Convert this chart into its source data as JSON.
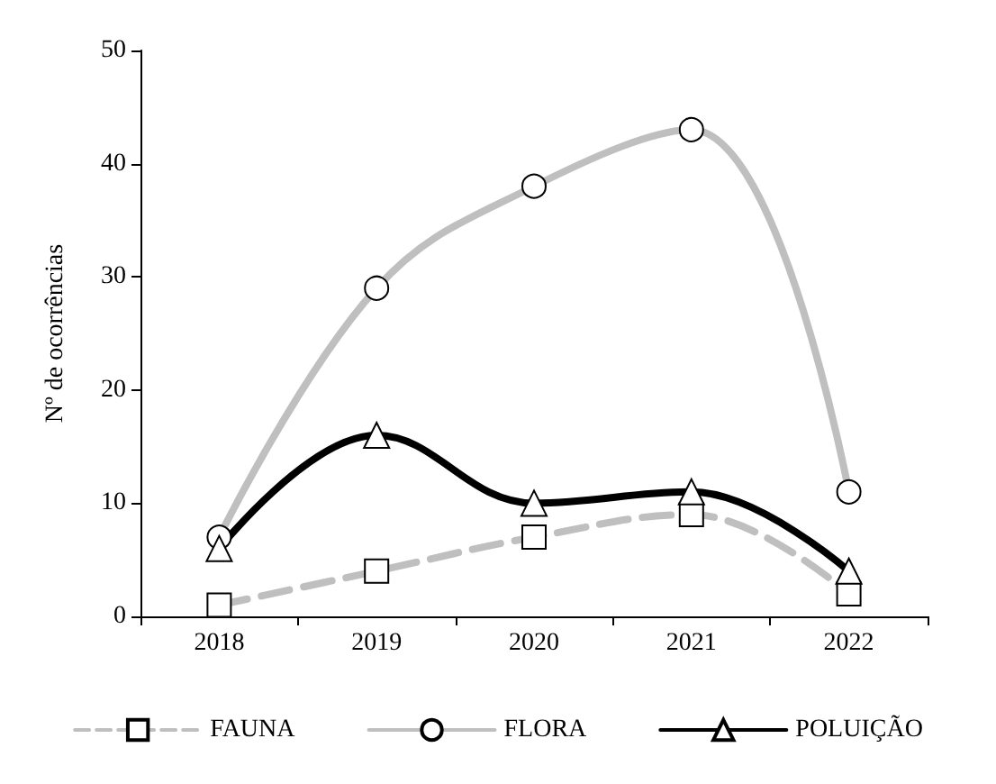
{
  "chart_data": {
    "type": "line",
    "ylabel": "Nº de ocorrências",
    "categories": [
      "2018",
      "2019",
      "2020",
      "2021",
      "2022"
    ],
    "series": [
      {
        "name": "FAUNA",
        "color": "#bfbfbf",
        "values": [
          1,
          4,
          7,
          9,
          2
        ],
        "marker": "square",
        "line_style": "dashed"
      },
      {
        "name": "FLORA",
        "color": "#bfbfbf",
        "values": [
          7,
          29,
          38,
          43,
          11
        ],
        "marker": "circle",
        "line_style": "solid"
      },
      {
        "name": "POLUIÇÃO",
        "color": "#000000",
        "values": [
          6,
          16,
          10,
          11,
          4
        ],
        "marker": "triangle",
        "line_style": "solid"
      }
    ],
    "ylim": [
      0,
      50
    ],
    "yticks": [
      0,
      10,
      20,
      30,
      40,
      50
    ],
    "grid": false,
    "legend": "bottom"
  }
}
